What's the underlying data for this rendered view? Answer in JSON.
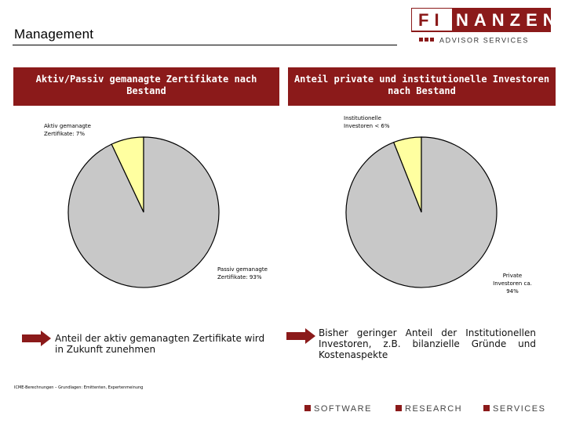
{
  "header": {
    "title": "Management",
    "logo_main": "FINANZEN",
    "logo_sub": "ADVISOR SERVICES"
  },
  "colors": {
    "accent": "#8b1a1a",
    "pie_grey": "#c8c8c8",
    "pie_yellow": "#ffffa0"
  },
  "left_panel": {
    "heading": "Aktiv/Passiv gemanagte Zertifikate nach Bestand",
    "note": "Anteil der aktiv gemanagten Zertifikate wird in Zukunft zunehmen",
    "arrow_icon": "arrow-right-icon"
  },
  "right_panel": {
    "heading": "Anteil private und institutionelle Investoren nach Bestand",
    "note": "Bisher geringer Anteil der Institutionellen Investoren, z.B. bilanzielle Gründe und Kostenaspekte",
    "arrow_icon": "arrow-right-icon"
  },
  "chart_data": [
    {
      "type": "pie",
      "title": "Aktiv/Passiv gemanagte Zertifikate nach Bestand",
      "slices": [
        {
          "label": "Aktiv gemanagte Zertifikate: 7%",
          "value": 7,
          "color": "#ffffa0"
        },
        {
          "label": "Passiv gemanagte Zertifikate: 93%",
          "value": 93,
          "color": "#c8c8c8"
        }
      ]
    },
    {
      "type": "pie",
      "title": "Anteil private und institutionelle Investoren nach Bestand",
      "slices": [
        {
          "label": "Institutionelle Investoren < 6%",
          "value": 6,
          "color": "#ffffa0"
        },
        {
          "label": "Private Investoren ca. 94%",
          "value": 94,
          "color": "#c8c8c8"
        }
      ]
    }
  ],
  "source": "ICME-Berechnungen – Grundlagen: Emittenten, Expertenmeinung",
  "footer": {
    "items": [
      "SOFTWARE",
      "RESEARCH",
      "SERVICES"
    ]
  }
}
